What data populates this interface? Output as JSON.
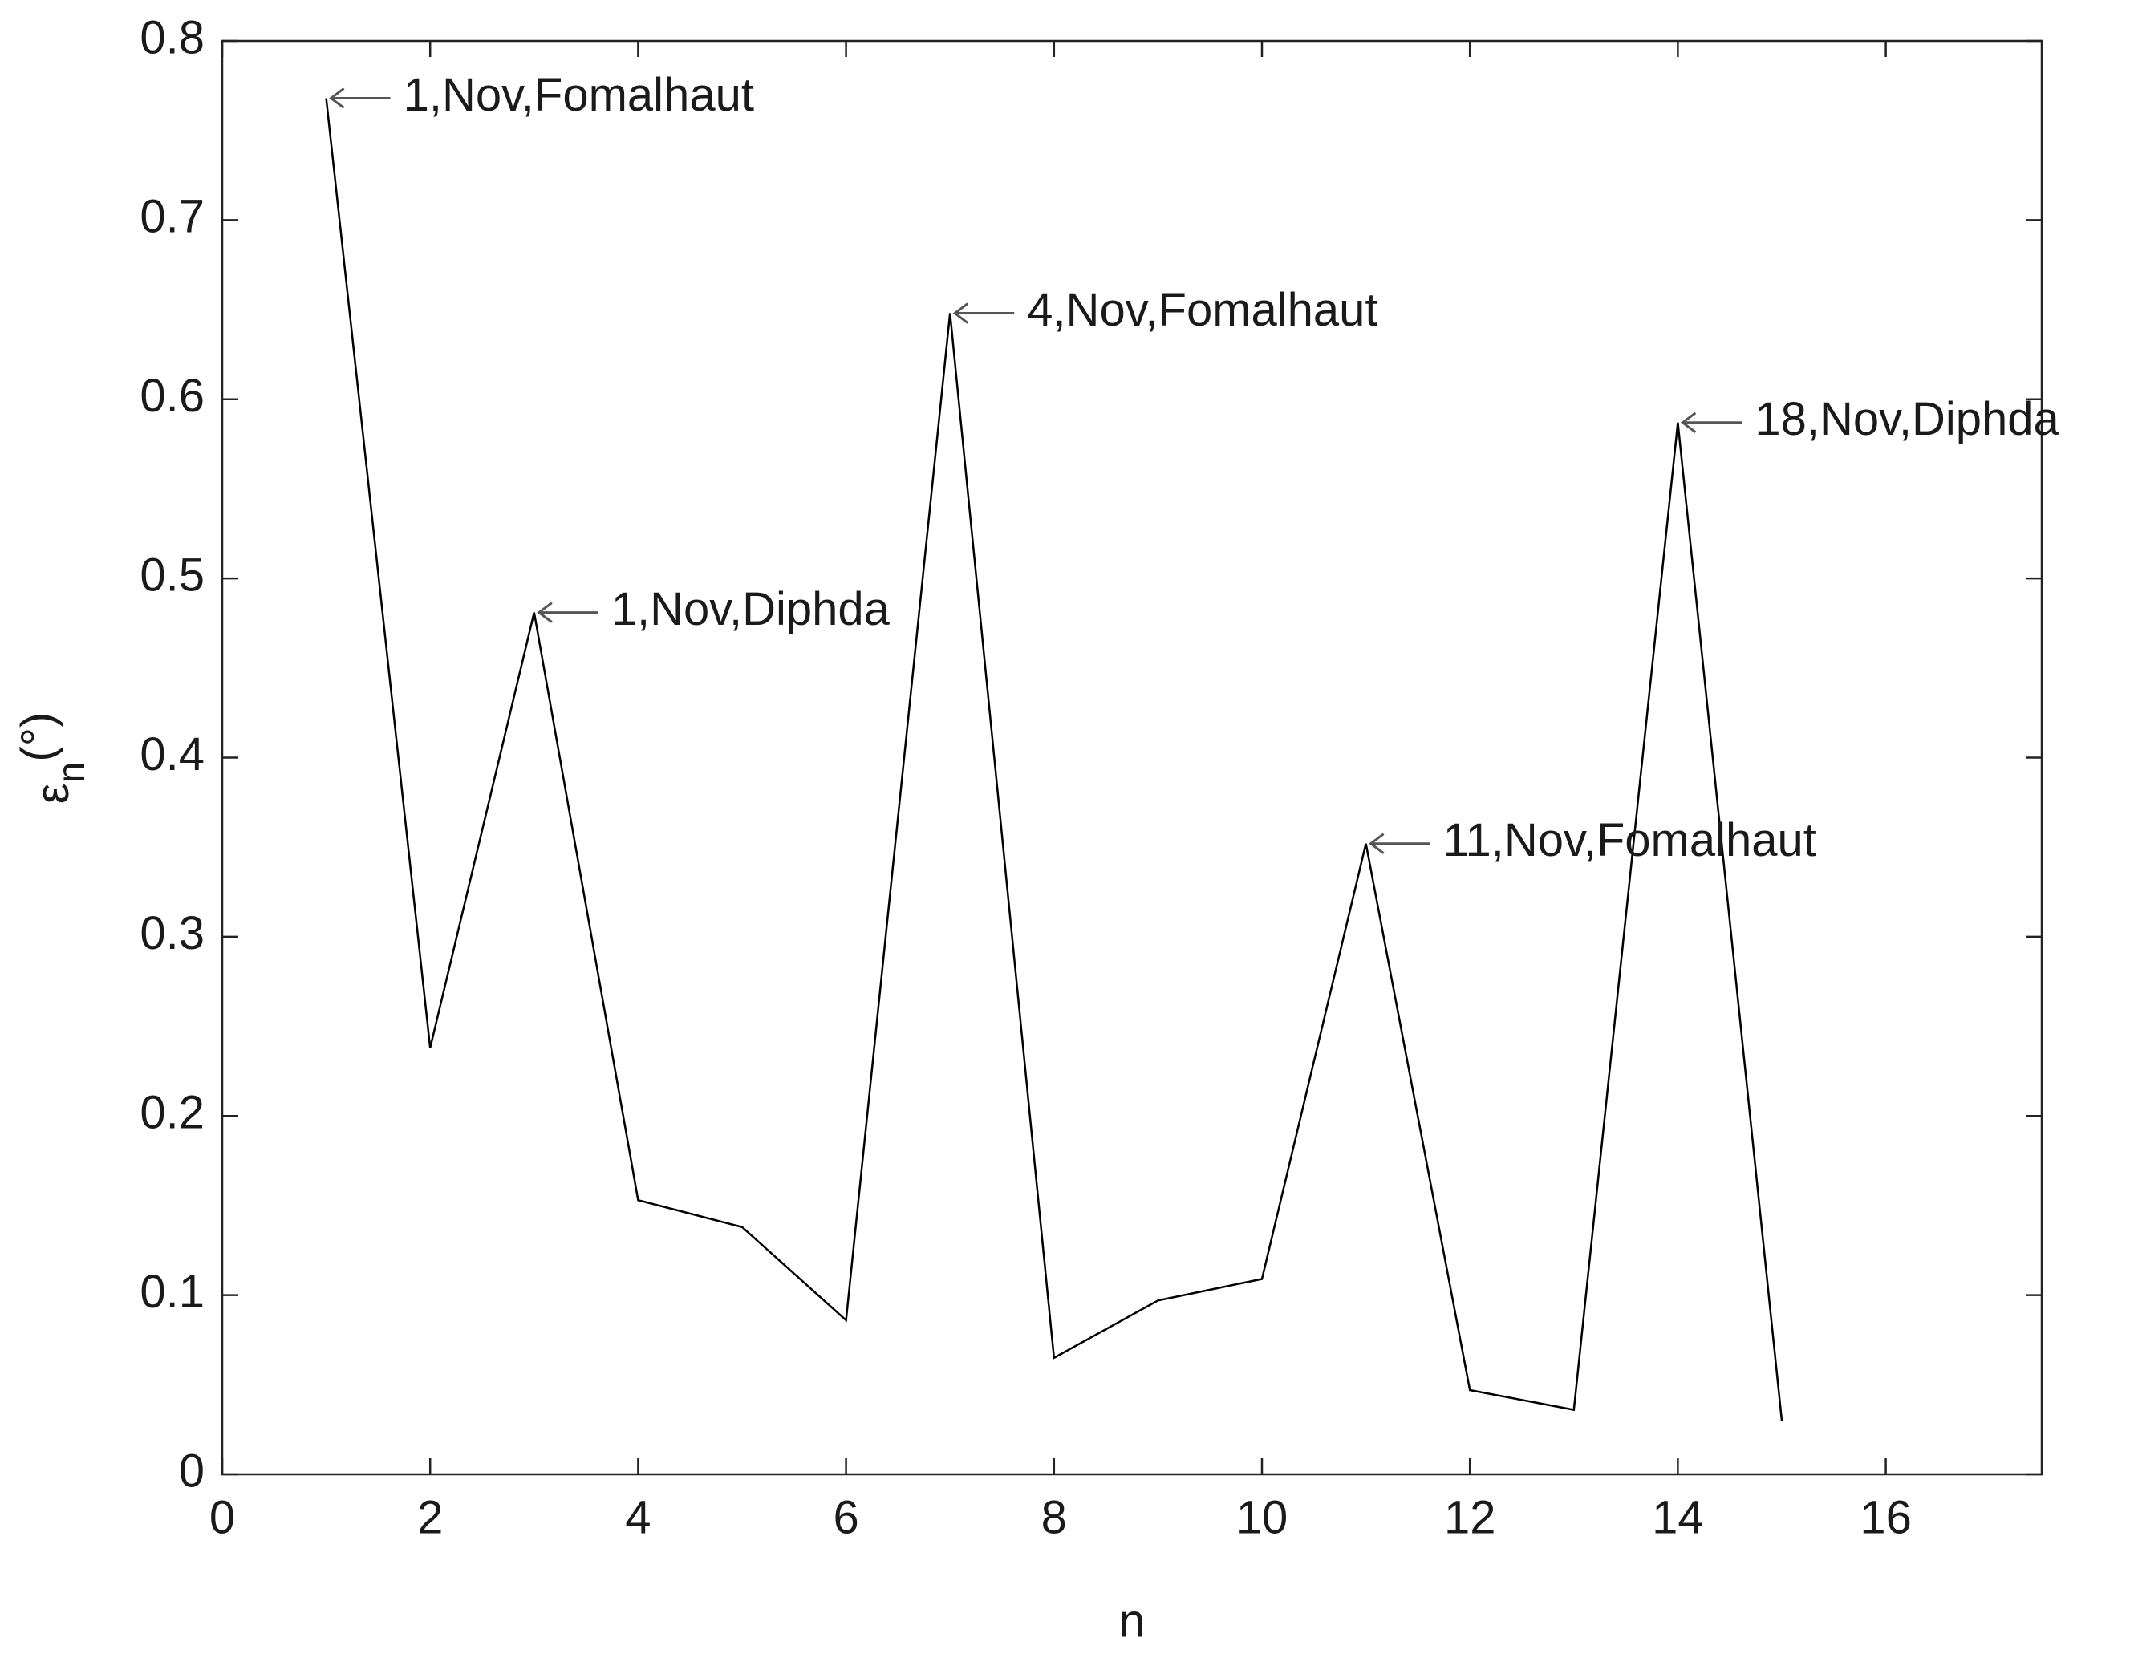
{
  "chart_data": {
    "type": "line",
    "xlabel": "n",
    "ylabel": {
      "symbol": "ε",
      "subscript": "n",
      "unit": "(°)"
    },
    "x": [
      1,
      2,
      3,
      4,
      5,
      6,
      7,
      8,
      9,
      10,
      11,
      12,
      13,
      14,
      15
    ],
    "series": [
      {
        "color": "#000000",
        "values": [
          0.768,
          0.238,
          0.481,
          0.153,
          0.138,
          0.086,
          0.648,
          0.065,
          0.097,
          0.109,
          0.352,
          0.047,
          0.036,
          0.587,
          0.03
        ]
      }
    ],
    "xlim": [
      0,
      17.5
    ],
    "xticks": [
      0,
      2,
      4,
      6,
      8,
      10,
      12,
      14,
      16
    ],
    "ylim": [
      0,
      0.8
    ],
    "yticks": [
      0,
      0.1,
      0.2,
      0.3,
      0.4,
      0.5,
      0.6,
      0.7,
      0.8
    ],
    "grid": false,
    "annotations": [
      {
        "text": "1,Nov,Fomalhaut",
        "x": 1
      },
      {
        "text": "1,Nov,Diphda",
        "x": 3
      },
      {
        "text": "4,Nov,Fomalhaut",
        "x": 7
      },
      {
        "text": "11,Nov,Fomalhaut",
        "x": 11
      },
      {
        "text": "18,Nov,Diphda",
        "x": 14
      }
    ]
  }
}
